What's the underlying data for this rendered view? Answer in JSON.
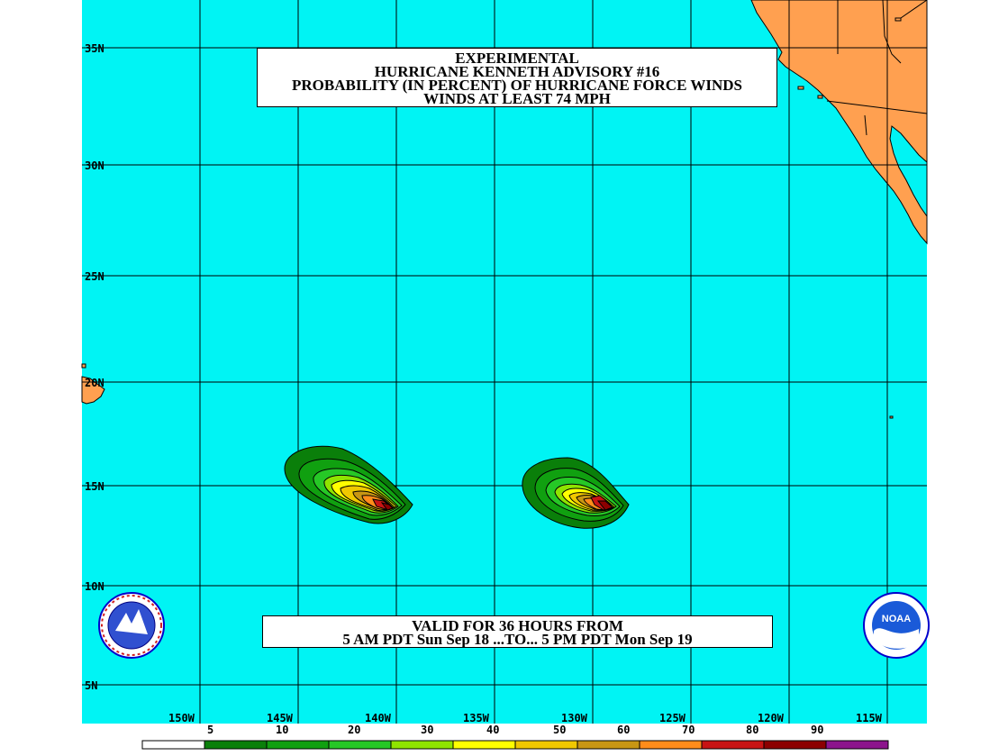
{
  "title": {
    "line1": "EXPERIMENTAL",
    "line2": "HURRICANE KENNETH ADVISORY #16",
    "line3": "PROBABILITY (IN PERCENT) OF HURRICANE FORCE WINDS",
    "line4": "WINDS AT LEAST 74 MPH"
  },
  "valid": {
    "line1": "VALID FOR 36 HOURS FROM",
    "line2": "5 AM PDT Sun Sep 18 ...TO... 5 PM PDT Mon Sep 19"
  },
  "lat_labels": [
    "35N",
    "30N",
    "25N",
    "20N",
    "15N",
    "10N",
    "5N"
  ],
  "lon_labels": [
    "150W",
    "145W",
    "140W",
    "135W",
    "130W",
    "125W",
    "120W",
    "115W"
  ],
  "legend": {
    "labels": [
      "5",
      "10",
      "20",
      "30",
      "40",
      "50",
      "60",
      "70",
      "80",
      "90"
    ],
    "colors": [
      "#ffffff",
      "#0a7f0a",
      "#10a010",
      "#26c826",
      "#8fe400",
      "#ffff00",
      "#f0c800",
      "#c89614",
      "#ff8c1a",
      "#c81414",
      "#8c0000",
      "#8c148c"
    ]
  },
  "colors": {
    "ocean": "#00f4f4",
    "land": "#ffa050",
    "grid": "#000000"
  },
  "logos": {
    "left": "nws-logo",
    "right": "noaa-logo",
    "right_text": "NOAA"
  }
}
